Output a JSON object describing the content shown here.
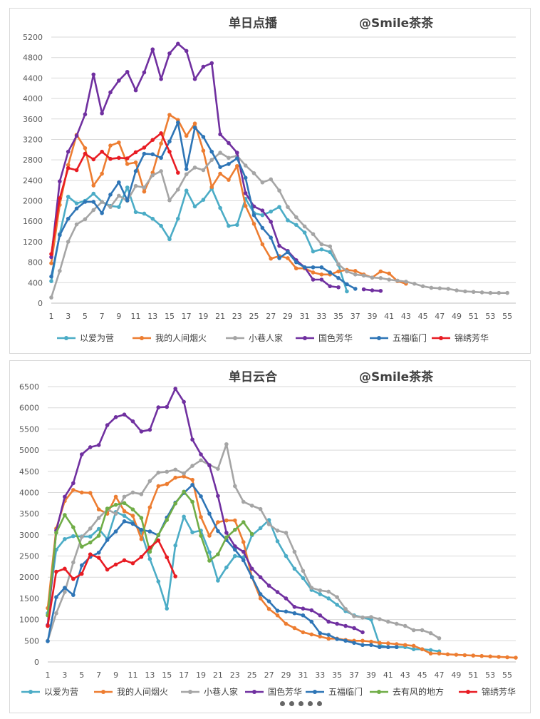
{
  "chart_data": [
    {
      "type": "line",
      "title": "单日点播",
      "watermark": "@Smile茶茶",
      "xlabel": "",
      "ylabel": "",
      "xlim": [
        1,
        56
      ],
      "ylim": [
        0,
        5200
      ],
      "yticks": [
        0,
        400,
        800,
        1200,
        1600,
        2000,
        2400,
        2800,
        3200,
        3600,
        4000,
        4400,
        4800,
        5200
      ],
      "xticks": [
        1,
        3,
        5,
        7,
        9,
        11,
        13,
        15,
        17,
        19,
        21,
        23,
        25,
        27,
        29,
        31,
        33,
        35,
        37,
        39,
        41,
        43,
        45,
        47,
        49,
        51,
        53,
        55
      ],
      "grid": "horizontal",
      "legend_position": "bottom",
      "colors": {
        "以爱为营": "#4BACC6",
        "我的人间烟火": "#ED7D31",
        "小巷人家": "#A5A5A5",
        "国色芳华": "#7030A0",
        "五福临门": "#2E75B6",
        "锦绣芳华": "#E81C23"
      },
      "series": [
        {
          "name": "以爱为营",
          "start": 1,
          "values": [
            430,
            1350,
            2080,
            1950,
            2000,
            2140,
            1980,
            1900,
            1880,
            2260,
            1780,
            1750,
            1650,
            1510,
            1250,
            1650,
            2200,
            1890,
            2020,
            2240,
            1860,
            1510,
            1530,
            2040,
            1760,
            1720,
            1790,
            1880,
            1620,
            1530,
            1380,
            1010,
            1050,
            1000,
            750,
            230
          ]
        },
        {
          "name": "我的人间烟火",
          "start": 1,
          "values": [
            780,
            1920,
            2700,
            3290,
            3030,
            2300,
            2530,
            3080,
            3140,
            2720,
            2750,
            2180,
            2550,
            3120,
            3680,
            3580,
            3270,
            3510,
            2980,
            2270,
            2530,
            2410,
            2680,
            1900,
            1550,
            1150,
            870,
            920,
            880,
            680,
            680,
            600,
            560,
            560,
            620,
            650,
            630,
            560,
            500,
            620,
            580,
            430,
            380
          ]
        },
        {
          "name": "小巷人家",
          "start": 1,
          "values": [
            110,
            630,
            1200,
            1540,
            1640,
            1820,
            1980,
            1880,
            2100,
            2000,
            2290,
            2260,
            2500,
            2580,
            2010,
            2220,
            2520,
            2650,
            2600,
            2800,
            2940,
            2840,
            2880,
            2690,
            2540,
            2360,
            2420,
            2200,
            1880,
            1680,
            1500,
            1350,
            1150,
            1110,
            760,
            620,
            560,
            540,
            500,
            490,
            460,
            440,
            420,
            380,
            330,
            300,
            290,
            280,
            250,
            230,
            220,
            210,
            200,
            200,
            200
          ]
        },
        {
          "name": "国色芳华",
          "start": 1,
          "values": [
            900,
            2380,
            2960,
            3270,
            3690,
            4470,
            3710,
            4120,
            4350,
            4520,
            4160,
            4510,
            4960,
            4380,
            4880,
            5070,
            4930,
            4380,
            4620,
            4690,
            3300,
            3130,
            2940,
            2150,
            1890,
            1810,
            1590,
            1120,
            1020,
            840,
            700,
            460,
            460,
            330,
            310,
            null,
            null,
            270,
            250,
            240
          ]
        },
        {
          "name": "五福临门",
          "start": 1,
          "values": [
            520,
            1330,
            1650,
            1850,
            1980,
            1980,
            1760,
            2120,
            2360,
            2010,
            2580,
            2920,
            2910,
            2840,
            3160,
            3530,
            2620,
            3430,
            3250,
            2960,
            2660,
            2720,
            2830,
            2450,
            1720,
            1470,
            1280,
            880,
            1000,
            800,
            700,
            700,
            700,
            600,
            490,
            370,
            280
          ]
        },
        {
          "name": "锦绣芳华",
          "start": 1,
          "values": [
            960,
            2050,
            2640,
            2600,
            2920,
            2810,
            2960,
            2820,
            2840,
            2830,
            2950,
            3040,
            3190,
            3320,
            2960,
            2550
          ]
        }
      ]
    },
    {
      "type": "line",
      "title": "单日云合",
      "watermark": "@Smile茶茶",
      "xlabel": "",
      "ylabel": "",
      "xlim": [
        1,
        56
      ],
      "ylim": [
        0,
        6500
      ],
      "yticks": [
        0,
        500,
        1000,
        1500,
        2000,
        2500,
        3000,
        3500,
        4000,
        4500,
        5000,
        5500,
        6000,
        6500
      ],
      "xticks": [
        1,
        3,
        5,
        7,
        9,
        11,
        13,
        15,
        17,
        19,
        21,
        23,
        25,
        27,
        29,
        31,
        33,
        35,
        37,
        39,
        41,
        43,
        45,
        47,
        49,
        51,
        53,
        55
      ],
      "grid": "horizontal",
      "legend_position": "bottom",
      "colors": {
        "以爱为营": "#4BACC6",
        "我的人间烟火": "#ED7D31",
        "小巷人家": "#A5A5A5",
        "国色芳华": "#7030A0",
        "五福临门": "#2E75B6",
        "去有风的地方": "#70AD47",
        "锦绣芳华": "#E81C23"
      },
      "series": [
        {
          "name": "以爱为营",
          "start": 1,
          "values": [
            1150,
            2650,
            2900,
            2970,
            2960,
            2960,
            3140,
            2900,
            3540,
            3450,
            3300,
            3050,
            2430,
            1900,
            1260,
            2750,
            3430,
            3060,
            3100,
            2590,
            1920,
            2230,
            2500,
            2470,
            2990,
            3160,
            3350,
            2850,
            2500,
            2200,
            1980,
            1700,
            1600,
            1500,
            1350,
            1200,
            1100,
            1050,
            1000,
            400,
            350,
            350,
            350,
            300,
            300,
            280,
            250
          ]
        },
        {
          "name": "我的人间烟火",
          "start": 1,
          "values": [
            1270,
            3150,
            3800,
            4060,
            4000,
            3990,
            3600,
            3500,
            3900,
            3560,
            3450,
            2900,
            3650,
            4150,
            4200,
            4350,
            4380,
            4300,
            3420,
            2980,
            3300,
            3340,
            3340,
            2830,
            2000,
            1500,
            1250,
            1100,
            900,
            800,
            700,
            650,
            600,
            550,
            550,
            520,
            500,
            500,
            480,
            450,
            440,
            420,
            400,
            380,
            300,
            200,
            200,
            180,
            170,
            160,
            150,
            140,
            130,
            120,
            110,
            100
          ]
        },
        {
          "name": "小巷人家",
          "start": 1,
          "values": [
            500,
            1150,
            1650,
            2350,
            2950,
            3150,
            3400,
            3600,
            3500,
            3900,
            4000,
            3960,
            4270,
            4470,
            4490,
            4540,
            4450,
            4630,
            4760,
            4650,
            4560,
            5140,
            4150,
            3780,
            3690,
            3610,
            3250,
            3100,
            3050,
            2600,
            2150,
            1750,
            1690,
            1660,
            1530,
            1250,
            1080,
            1050,
            1060,
            1010,
            950,
            900,
            850,
            750,
            750,
            680,
            560
          ]
        },
        {
          "name": "国色芳华",
          "start": 1,
          "values": [
            870,
            3100,
            3900,
            4220,
            4900,
            5070,
            5120,
            5590,
            5780,
            5840,
            5680,
            5440,
            5480,
            6010,
            6020,
            6450,
            6140,
            5250,
            4900,
            4640,
            3920,
            3050,
            2730,
            2600,
            2200,
            2000,
            1800,
            1650,
            1500,
            1300,
            1260,
            1220,
            1100,
            950,
            900,
            850,
            800,
            700
          ]
        },
        {
          "name": "五福临门",
          "start": 1,
          "values": [
            490,
            1530,
            1750,
            1580,
            2280,
            2480,
            2580,
            2880,
            3080,
            3320,
            3260,
            3120,
            3080,
            2990,
            3410,
            3760,
            3990,
            4180,
            3910,
            3500,
            3090,
            2880,
            2650,
            2400,
            2000,
            1600,
            1430,
            1210,
            1190,
            1150,
            1100,
            950,
            680,
            640,
            540,
            500,
            450,
            400,
            400,
            350,
            350,
            350
          ]
        },
        {
          "name": "去有风的地方",
          "start": 1,
          "values": [
            1100,
            3050,
            3470,
            3180,
            2720,
            2820,
            2980,
            3620,
            3710,
            3750,
            3600,
            3400,
            2600,
            3000,
            3350,
            3740,
            4020,
            3780,
            2980,
            2390,
            2540,
            2940,
            3120,
            3300,
            3020
          ]
        },
        {
          "name": "锦绣芳华",
          "start": 1,
          "values": [
            850,
            2130,
            2200,
            1960,
            2080,
            2540,
            2460,
            2180,
            2300,
            2400,
            2330,
            2480,
            2700,
            2870,
            2470,
            2020
          ]
        }
      ]
    }
  ]
}
